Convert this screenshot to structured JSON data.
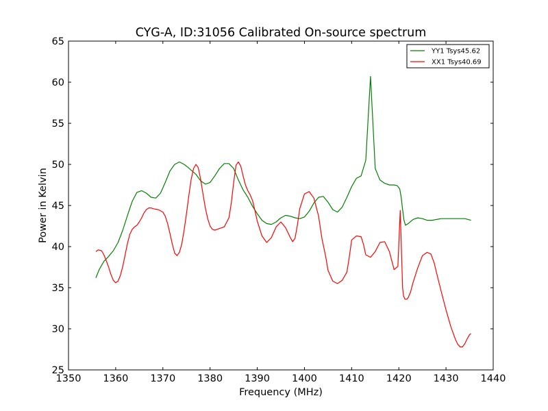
{
  "chart_data": {
    "type": "line",
    "title": "CYG-A, ID:31056 Calibrated On-source spectrum",
    "xlabel": "Frequency (MHz)",
    "ylabel": "Power in Kelvin",
    "xlim": [
      1350,
      1440
    ],
    "ylim": [
      25,
      65
    ],
    "xticks": [
      "1350",
      "1360",
      "1370",
      "1380",
      "1390",
      "1400",
      "1410",
      "1420",
      "1430",
      "1440"
    ],
    "yticks": [
      "25",
      "30",
      "35",
      "40",
      "45",
      "50",
      "55",
      "60",
      "65"
    ],
    "grid": false,
    "legend_position": "top-right",
    "series": [
      {
        "name": "YY1 Tsys45.62",
        "color": "#008000",
        "x": [
          1355.8,
          1356.5,
          1357.5,
          1358.5,
          1359.5,
          1360.5,
          1361.5,
          1362.5,
          1363.5,
          1364.5,
          1365.5,
          1366.5,
          1367.5,
          1368.5,
          1369.5,
          1370.5,
          1371.5,
          1372.5,
          1373.5,
          1374.5,
          1375.2,
          1376.0,
          1377.0,
          1378.0,
          1379.0,
          1380.0,
          1381.0,
          1382.0,
          1383.0,
          1384.0,
          1385.0,
          1386.0,
          1387.0,
          1388.0,
          1389.0,
          1390.0,
          1391.0,
          1392.0,
          1393.0,
          1394.0,
          1395.0,
          1396.0,
          1397.0,
          1398.0,
          1399.0,
          1400.0,
          1401.0,
          1402.0,
          1403.0,
          1404.0,
          1405.0,
          1406.0,
          1407.0,
          1408.0,
          1409.0,
          1410.0,
          1411.0,
          1412.0,
          1413.0,
          1414.0,
          1415.0,
          1416.0,
          1417.0,
          1418.0,
          1419.0,
          1419.7,
          1420.2,
          1420.5,
          1420.8,
          1421.1,
          1421.4,
          1422.0,
          1423.0,
          1424.0,
          1425.0,
          1426.0,
          1427.0,
          1428.0,
          1429.0,
          1430.0,
          1431.0,
          1432.0,
          1433.0,
          1434.0,
          1434.7,
          1435.3
        ],
        "values": [
          36.2,
          37.2,
          38.2,
          38.8,
          39.5,
          40.5,
          42.0,
          43.8,
          45.5,
          46.6,
          46.8,
          46.5,
          46.0,
          45.9,
          46.5,
          47.8,
          49.2,
          50.0,
          50.3,
          50.0,
          49.7,
          49.3,
          48.8,
          48.0,
          47.6,
          47.8,
          48.6,
          49.5,
          50.1,
          50.1,
          49.5,
          48.1,
          46.9,
          46.0,
          44.9,
          44.0,
          43.2,
          42.8,
          42.7,
          43.0,
          43.5,
          43.8,
          43.7,
          43.5,
          43.4,
          43.6,
          44.3,
          45.3,
          46.0,
          46.1,
          45.4,
          44.5,
          44.2,
          44.8,
          46.0,
          47.3,
          48.3,
          48.6,
          50.5,
          60.7,
          49.5,
          48.1,
          47.7,
          47.5,
          47.5,
          47.4,
          47.0,
          46.0,
          44.5,
          43.2,
          42.6,
          42.8,
          43.3,
          43.5,
          43.4,
          43.2,
          43.2,
          43.3,
          43.4,
          43.4,
          43.4,
          43.4,
          43.4,
          43.4,
          43.3,
          43.2
        ],
        "_note": "values/x aligned by index"
      },
      {
        "name": "XX1 Tsys40.69",
        "color": "#ff0000",
        "x": [
          1355.8,
          1356.3,
          1357.0,
          1357.5,
          1358.0,
          1358.5,
          1359.0,
          1359.5,
          1360.0,
          1360.5,
          1361.0,
          1361.5,
          1362.0,
          1362.5,
          1363.0,
          1363.5,
          1364.0,
          1364.5,
          1365.0,
          1365.5,
          1366.0,
          1366.5,
          1367.0,
          1367.5,
          1368.0,
          1369.0,
          1370.0,
          1370.5,
          1371.0,
          1371.5,
          1372.0,
          1372.5,
          1373.0,
          1373.5,
          1374.0,
          1374.5,
          1375.0,
          1375.5,
          1376.0,
          1376.5,
          1377.0,
          1377.5,
          1378.0,
          1378.5,
          1379.0,
          1379.5,
          1380.0,
          1380.5,
          1381.0,
          1381.5,
          1382.0,
          1383.0,
          1384.0,
          1384.5,
          1385.0,
          1385.5,
          1386.0,
          1386.5,
          1387.0,
          1387.5,
          1388.0,
          1388.5,
          1389.0,
          1389.5,
          1390.0,
          1391.0,
          1392.0,
          1393.0,
          1394.0,
          1395.0,
          1396.0,
          1397.0,
          1397.5,
          1398.0,
          1398.5,
          1399.0,
          1400.0,
          1401.0,
          1402.0,
          1403.0,
          1403.7,
          1404.5,
          1405.0,
          1406.0,
          1407.0,
          1408.0,
          1409.0,
          1409.5,
          1410.0,
          1411.0,
          1412.0,
          1412.5,
          1413.0,
          1414.0,
          1415.0,
          1416.0,
          1417.0,
          1418.0,
          1419.0,
          1419.8,
          1420.3,
          1420.8,
          1421.0,
          1421.3,
          1421.7,
          1422.0,
          1422.5,
          1423.0,
          1424.0,
          1425.0,
          1426.0,
          1426.8,
          1427.5,
          1428.0,
          1429.0,
          1430.0,
          1431.0,
          1432.0,
          1432.5,
          1433.0,
          1433.5,
          1434.0,
          1434.5,
          1435.0,
          1435.3
        ],
        "values": [
          39.4,
          39.6,
          39.5,
          39.0,
          38.3,
          37.5,
          36.6,
          35.9,
          35.6,
          35.8,
          36.5,
          37.6,
          39.0,
          40.4,
          41.5,
          42.1,
          42.4,
          42.6,
          43.0,
          43.5,
          44.1,
          44.5,
          44.7,
          44.7,
          44.6,
          44.5,
          44.2,
          43.7,
          42.8,
          41.6,
          40.3,
          39.2,
          38.9,
          39.3,
          40.3,
          42.0,
          44.0,
          46.2,
          48.2,
          49.5,
          50.0,
          49.6,
          48.2,
          46.4,
          44.7,
          43.4,
          42.5,
          42.1,
          42.0,
          42.1,
          42.2,
          42.4,
          43.5,
          45.3,
          47.8,
          49.9,
          50.3,
          49.8,
          48.6,
          47.5,
          46.8,
          46.3,
          45.6,
          44.4,
          43.1,
          41.3,
          40.5,
          41.1,
          42.4,
          43.0,
          42.3,
          41.1,
          40.6,
          41.0,
          42.6,
          44.6,
          46.4,
          46.7,
          45.9,
          43.7,
          41.0,
          38.8,
          37.1,
          35.8,
          35.5,
          35.9,
          36.9,
          38.7,
          40.8,
          41.3,
          41.2,
          40.3,
          39.0,
          38.7,
          39.4,
          40.5,
          40.6,
          39.4,
          37.2,
          37.6,
          44.4,
          35.0,
          34.0,
          33.6,
          33.6,
          33.8,
          34.5,
          35.6,
          37.4,
          38.9,
          39.3,
          39.1,
          38.0,
          36.8,
          34.5,
          32.3,
          30.3,
          28.7,
          28.1,
          27.8,
          27.8,
          28.2,
          28.8,
          29.3,
          29.4
        ],
        "_note": "values/x aligned by index"
      }
    ]
  }
}
